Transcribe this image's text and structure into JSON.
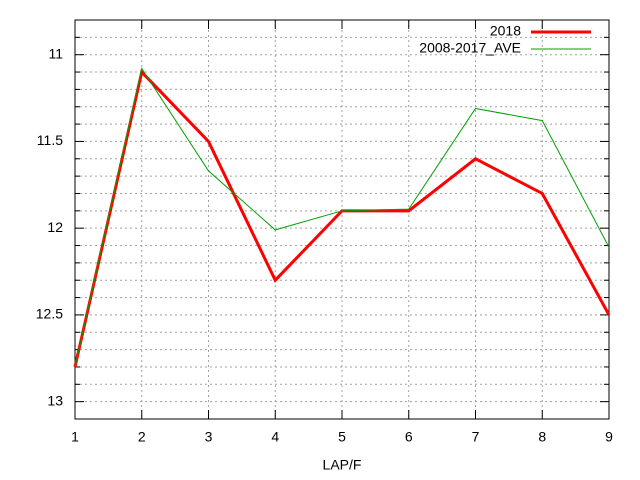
{
  "chart_data": {
    "type": "line",
    "x_label": "LAP/F",
    "x": [
      1,
      2,
      3,
      4,
      5,
      6,
      7,
      8,
      9
    ],
    "series": [
      {
        "name": "2018",
        "color": "#ff0000",
        "width": 3,
        "values": [
          12.8,
          11.1,
          11.5,
          12.3,
          11.9,
          11.9,
          11.6,
          11.8,
          12.5
        ]
      },
      {
        "name": "2008-2017_AVE",
        "color": "#00a000",
        "width": 1,
        "values": [
          12.8,
          11.08,
          11.67,
          12.01,
          11.9,
          11.89,
          11.31,
          11.38,
          12.11
        ]
      }
    ],
    "xlim": [
      1,
      9
    ],
    "xticks": [
      1,
      2,
      3,
      4,
      5,
      6,
      7,
      8,
      9
    ],
    "ylim": [
      13.1,
      10.8
    ],
    "yticks": [
      11,
      11.5,
      12,
      12.5,
      13
    ],
    "y_minor_ticks": [
      10.9,
      11.1,
      11.2,
      11.3,
      11.4,
      11.6,
      11.7,
      11.8,
      11.9,
      12.1,
      12.2,
      12.3,
      12.4,
      12.6,
      12.7,
      12.8,
      12.9,
      13.1
    ],
    "grid": true,
    "legend": "top-right"
  }
}
